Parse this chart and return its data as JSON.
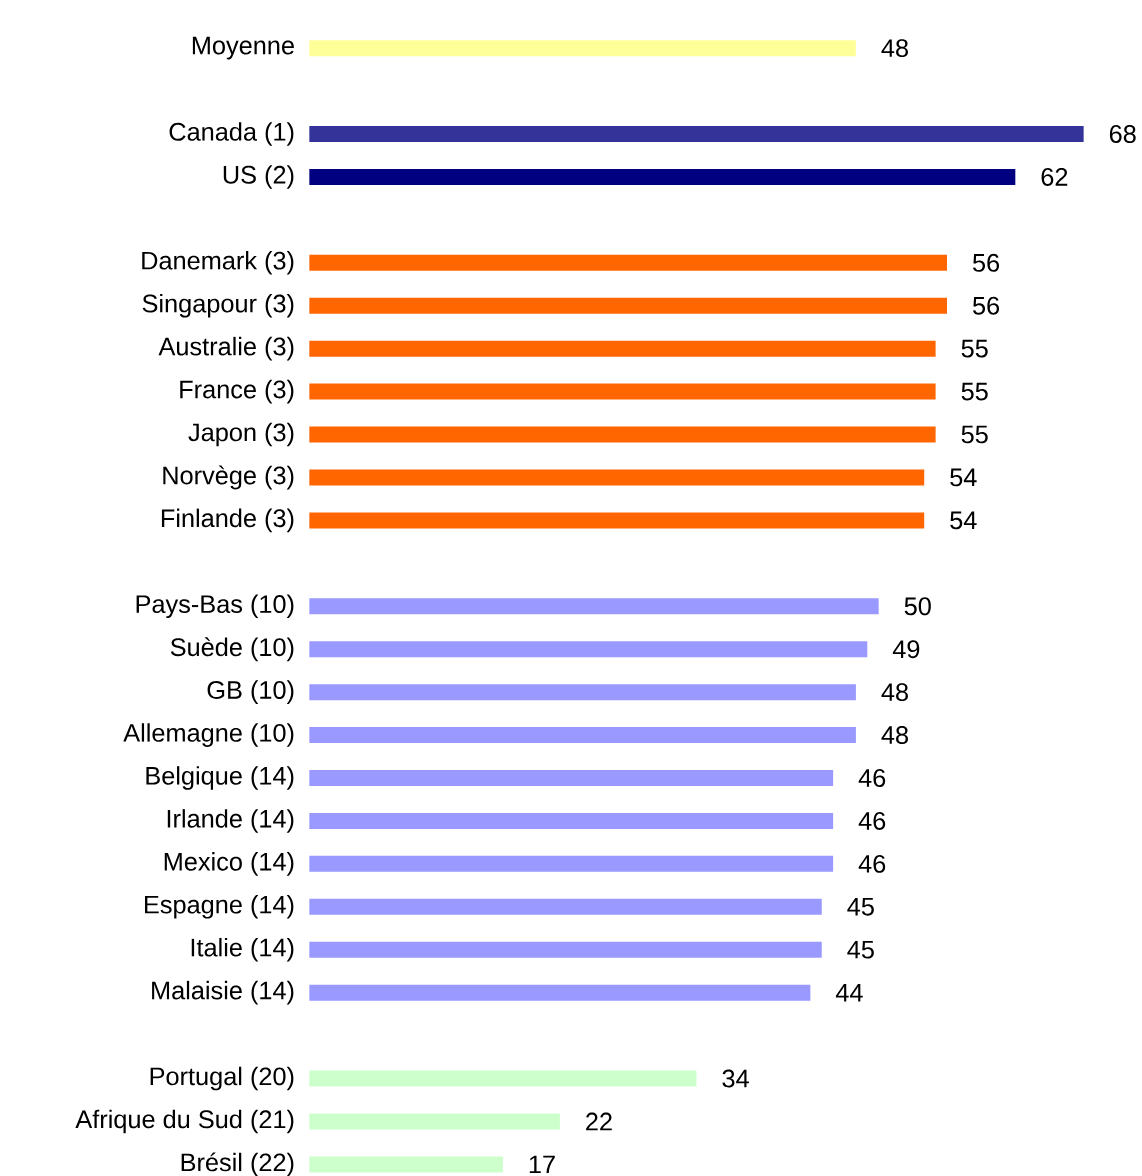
{
  "chart_data": {
    "type": "bar",
    "orientation": "horizontal",
    "data_labels": true,
    "categories": [
      "Moyenne",
      null,
      "Canada (1)",
      "US (2)",
      null,
      "Danemark (3)",
      "Singapour (3)",
      "Australie (3)",
      "France (3)",
      "Japon (3)",
      "Norvège (3)",
      "Finlande (3)",
      null,
      "Pays-Bas (10)",
      "Suède (10)",
      "GB (10)",
      "Allemagne (10)",
      "Belgique (14)",
      "Irlande (14)",
      "Mexico (14)",
      "Espagne (14)",
      "Italie (14)",
      "Malaisie (14)",
      null,
      "Portugal (20)",
      "Afrique du Sud (21)",
      "Brésil (22)"
    ],
    "values": [
      48,
      null,
      68,
      62,
      null,
      56,
      56,
      55,
      55,
      55,
      54,
      54,
      null,
      50,
      49,
      48,
      48,
      46,
      46,
      46,
      45,
      45,
      44,
      null,
      34,
      22,
      17
    ],
    "colors": [
      "#ffff99",
      null,
      "#333399",
      "#000080",
      null,
      "#ff6600",
      "#ff6600",
      "#ff6600",
      "#ff6600",
      "#ff6600",
      "#ff6600",
      "#ff6600",
      null,
      "#9999ff",
      "#9999ff",
      "#9999ff",
      "#9999ff",
      "#9999ff",
      "#9999ff",
      "#9999ff",
      "#9999ff",
      "#9999ff",
      "#9999ff",
      null,
      "#ccffcc",
      "#ccffcc",
      "#ccffcc"
    ]
  }
}
